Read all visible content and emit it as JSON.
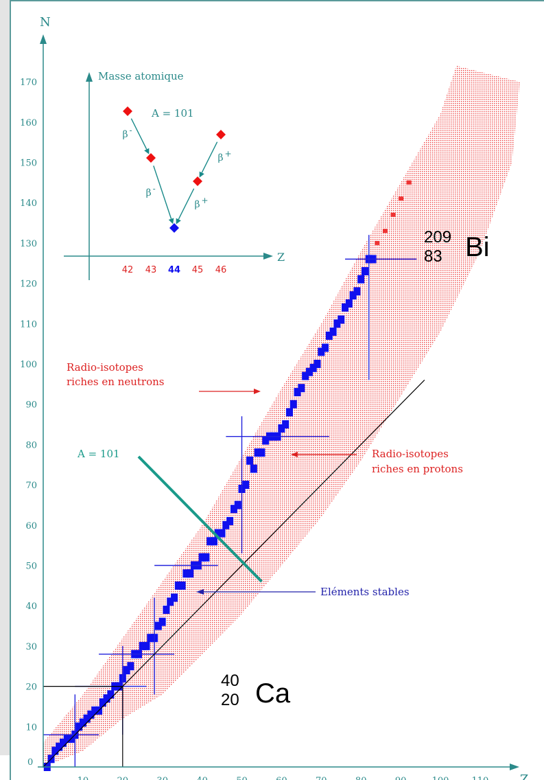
{
  "chart_data": {
    "type": "scatter",
    "xlabel": "Z",
    "ylabel": "N",
    "xlim": [
      0,
      118
    ],
    "ylim": [
      0,
      178
    ],
    "x_ticks": [
      10,
      20,
      30,
      40,
      50,
      60,
      70,
      80,
      90,
      100,
      110
    ],
    "y_ticks": [
      10,
      20,
      30,
      40,
      50,
      60,
      70,
      80,
      90,
      100,
      110,
      120,
      130,
      140,
      150,
      160,
      170
    ],
    "origin_label": "0",
    "series": [
      {
        "name": "Eléments stables",
        "color": "#1010ee",
        "points": [
          [
            1,
            0
          ],
          [
            2,
            2
          ],
          [
            3,
            4
          ],
          [
            4,
            5
          ],
          [
            5,
            6
          ],
          [
            6,
            7
          ],
          [
            7,
            7
          ],
          [
            8,
            8
          ],
          [
            9,
            10
          ],
          [
            10,
            11
          ],
          [
            11,
            12
          ],
          [
            12,
            13
          ],
          [
            13,
            14
          ],
          [
            14,
            14
          ],
          [
            15,
            16
          ],
          [
            16,
            17
          ],
          [
            17,
            18
          ],
          [
            18,
            20
          ],
          [
            19,
            20
          ],
          [
            20,
            22
          ],
          [
            21,
            24
          ],
          [
            22,
            25
          ],
          [
            23,
            28
          ],
          [
            24,
            28
          ],
          [
            25,
            30
          ],
          [
            26,
            30
          ],
          [
            27,
            32
          ],
          [
            28,
            32
          ],
          [
            29,
            35
          ],
          [
            30,
            36
          ],
          [
            31,
            39
          ],
          [
            32,
            41
          ],
          [
            33,
            42
          ],
          [
            34,
            45
          ],
          [
            35,
            45
          ],
          [
            36,
            48
          ],
          [
            37,
            48
          ],
          [
            38,
            50
          ],
          [
            39,
            50
          ],
          [
            40,
            52
          ],
          [
            41,
            52
          ],
          [
            42,
            56
          ],
          [
            43,
            56
          ],
          [
            44,
            58
          ],
          [
            45,
            58
          ],
          [
            46,
            60
          ],
          [
            47,
            61
          ],
          [
            48,
            64
          ],
          [
            49,
            65
          ],
          [
            50,
            69
          ],
          [
            51,
            70
          ],
          [
            52,
            76
          ],
          [
            53,
            74
          ],
          [
            54,
            78
          ],
          [
            55,
            78
          ],
          [
            56,
            81
          ],
          [
            57,
            82
          ],
          [
            58,
            82
          ],
          [
            59,
            82
          ],
          [
            60,
            84
          ],
          [
            61,
            85
          ],
          [
            62,
            88
          ],
          [
            63,
            90
          ],
          [
            64,
            93
          ],
          [
            65,
            94
          ],
          [
            66,
            97
          ],
          [
            67,
            98
          ],
          [
            68,
            99
          ],
          [
            69,
            100
          ],
          [
            70,
            103
          ],
          [
            71,
            104
          ],
          [
            72,
            107
          ],
          [
            73,
            108
          ],
          [
            74,
            110
          ],
          [
            75,
            111
          ],
          [
            76,
            114
          ],
          [
            77,
            115
          ],
          [
            78,
            117
          ],
          [
            79,
            118
          ],
          [
            80,
            121
          ],
          [
            81,
            123
          ],
          [
            82,
            126
          ],
          [
            83,
            126
          ]
        ]
      },
      {
        "name": "Radio-isotopes riches en neutrons",
        "color": "#ee3333",
        "band_lower": [
          [
            0,
            6
          ],
          [
            10,
            18
          ],
          [
            20,
            32
          ],
          [
            30,
            46
          ],
          [
            40,
            60
          ],
          [
            50,
            77
          ],
          [
            60,
            94
          ],
          [
            70,
            110
          ],
          [
            80,
            128
          ],
          [
            90,
            145
          ],
          [
            100,
            162
          ],
          [
            104,
            174
          ]
        ],
        "band_upper": [
          [
            0,
            0
          ],
          [
            10,
            4
          ],
          [
            20,
            12
          ],
          [
            30,
            18
          ],
          [
            40,
            28
          ],
          [
            50,
            38
          ],
          [
            60,
            50
          ],
          [
            70,
            62
          ],
          [
            80,
            76
          ],
          [
            90,
            92
          ],
          [
            100,
            108
          ],
          [
            110,
            128
          ],
          [
            118,
            150
          ],
          [
            120,
            170
          ]
        ],
        "heavy_points": [
          [
            84,
            130
          ],
          [
            86,
            133
          ],
          [
            88,
            137
          ],
          [
            90,
            141
          ],
          [
            92,
            145
          ]
        ]
      }
    ],
    "magic_numbers": [
      {
        "z": 8,
        "nmin": 0,
        "nmax": 18
      },
      {
        "z": 20,
        "nmin": 8,
        "nmax": 30
      },
      {
        "z": 28,
        "nmin": 18,
        "nmax": 42
      },
      {
        "z": 50,
        "nmin": 53,
        "nmax": 87
      },
      {
        "z": 82,
        "nmin": 96,
        "nmax": 132
      },
      {
        "n": 8,
        "zmin": 0,
        "zmax": 14
      },
      {
        "n": 20,
        "zmin": 8,
        "zmax": 26
      },
      {
        "n": 28,
        "zmin": 14,
        "zmax": 33
      },
      {
        "n": 50,
        "zmin": 28,
        "zmax": 44
      },
      {
        "n": 82,
        "zmin": 46,
        "zmax": 72
      },
      {
        "n": 126,
        "zmin": 76,
        "zmax": 94
      }
    ],
    "reference_lines": [
      {
        "type": "N=Z",
        "from": [
          0,
          0
        ],
        "to": [
          96,
          96
        ],
        "color": "#000000"
      },
      {
        "label": "A = 101",
        "from": [
          24,
          77
        ],
        "to": [
          55,
          46
        ],
        "color": "#1a9a8a"
      },
      {
        "type": "guide",
        "from": [
          0,
          20
        ],
        "to": [
          20,
          20
        ],
        "color": "#000000"
      },
      {
        "type": "guide",
        "from": [
          20,
          0
        ],
        "to": [
          20,
          20
        ],
        "color": "#000000"
      }
    ],
    "annotations": [
      {
        "text": "Radio-isotopes",
        "text2": "riches en neutrons",
        "color": "#dd2222",
        "arrow_to": [
          55,
          92
        ]
      },
      {
        "text": "Radio-isotopes",
        "text2": "riches en protons",
        "color": "#dd2222",
        "arrow_to": [
          60,
          75
        ]
      },
      {
        "text": "A = 101",
        "color": "#1a9a8a"
      },
      {
        "text": "Eléments stables",
        "color": "#2222aa",
        "arrow_to": [
          37,
          43
        ]
      }
    ],
    "nuclides": [
      {
        "symbol": "Bi",
        "mass": "209",
        "atomic": "83"
      },
      {
        "symbol": "Ca",
        "mass": "40",
        "atomic": "20"
      }
    ],
    "inset": {
      "title": "Masse atomique",
      "xlabel": "Z",
      "isobar_label": "A = 101",
      "z_ticks": [
        "42",
        "43",
        "44",
        "45",
        "46"
      ],
      "z_colors": [
        "#dd2222",
        "#dd2222",
        "#1010ee",
        "#dd2222",
        "#dd2222"
      ],
      "mass_levels": [
        5,
        3,
        0,
        2,
        4
      ],
      "stable_index": 2,
      "decays": [
        {
          "from": 0,
          "to": 1,
          "label": "β",
          "sign": "-"
        },
        {
          "from": 1,
          "to": 2,
          "label": "β",
          "sign": "-"
        },
        {
          "from": 4,
          "to": 3,
          "label": "β",
          "sign": "+"
        },
        {
          "from": 3,
          "to": 2,
          "label": "β",
          "sign": "+"
        }
      ]
    }
  }
}
